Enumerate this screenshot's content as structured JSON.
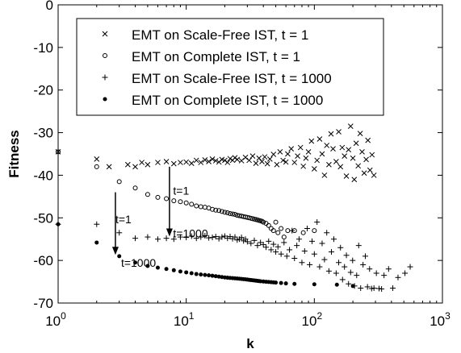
{
  "chart_data": {
    "type": "scatter",
    "xlabel": "k",
    "ylabel": "Fitness",
    "xscale": "log",
    "xlim": [
      1,
      1000
    ],
    "ylim": [
      -70,
      0
    ],
    "grid": false,
    "legend_position": "top-left",
    "x_ticks": [
      {
        "value": 1,
        "base": "10",
        "exp": "0"
      },
      {
        "value": 10,
        "base": "10",
        "exp": "1"
      },
      {
        "value": 100,
        "base": "10",
        "exp": "2"
      },
      {
        "value": 1000,
        "base": "10",
        "exp": "3"
      }
    ],
    "y_ticks": [
      {
        "value": 0,
        "label": "0"
      },
      {
        "value": -10,
        "label": "-10"
      },
      {
        "value": -20,
        "label": "-20"
      },
      {
        "value": -30,
        "label": "-30"
      },
      {
        "value": -40,
        "label": "-40"
      },
      {
        "value": -50,
        "label": "-50"
      },
      {
        "value": -60,
        "label": "-60"
      },
      {
        "value": -70,
        "label": "-70"
      }
    ],
    "series": [
      {
        "name": "EMT on Scale-Free IST, t = 1",
        "marker": "x",
        "points": [
          [
            1,
            -34.5
          ],
          [
            2,
            -36.2
          ],
          [
            2.5,
            -38
          ],
          [
            3.5,
            -37.5
          ],
          [
            4,
            -38
          ],
          [
            4.5,
            -37
          ],
          [
            5,
            -37.5
          ],
          [
            6,
            -37
          ],
          [
            7,
            -36.8
          ],
          [
            8,
            -37.3
          ],
          [
            9,
            -37
          ],
          [
            10,
            -36.9
          ],
          [
            11,
            -37.2
          ],
          [
            12,
            -36.5
          ],
          [
            13,
            -37
          ],
          [
            14,
            -36.4
          ],
          [
            15,
            -36.8
          ],
          [
            16,
            -36.2
          ],
          [
            17,
            -36.6
          ],
          [
            18,
            -36.9
          ],
          [
            19,
            -36.3
          ],
          [
            20,
            -36.5
          ],
          [
            21,
            -37
          ],
          [
            22,
            -36.1
          ],
          [
            23,
            -36.5
          ],
          [
            24,
            -35.9
          ],
          [
            25,
            -36.3
          ],
          [
            27,
            -36.6
          ],
          [
            29,
            -35.8
          ],
          [
            31,
            -36.5
          ],
          [
            33,
            -35.5
          ],
          [
            35,
            -37.2
          ],
          [
            37,
            -36
          ],
          [
            39,
            -36.8
          ],
          [
            41,
            -35.7
          ],
          [
            43,
            -37.3
          ],
          [
            45,
            -36.2
          ],
          [
            48,
            -35.1
          ],
          [
            51,
            -37.5
          ],
          [
            54,
            -34.5
          ],
          [
            57,
            -36.5
          ],
          [
            60,
            -36.9
          ],
          [
            62,
            -35
          ],
          [
            66,
            -33.8
          ],
          [
            70,
            -37
          ],
          [
            74,
            -35.5
          ],
          [
            78,
            -33.5
          ],
          [
            82,
            -37.9
          ],
          [
            86,
            -36
          ],
          [
            90,
            -34.5
          ],
          [
            95,
            -32
          ],
          [
            100,
            -38.5
          ],
          [
            105,
            -36.5
          ],
          [
            110,
            -31.5
          ],
          [
            115,
            -35
          ],
          [
            120,
            -40
          ],
          [
            125,
            -33
          ],
          [
            130,
            -37.5
          ],
          [
            135,
            -30.3
          ],
          [
            140,
            -33.8
          ],
          [
            148,
            -36.8
          ],
          [
            155,
            -29.8
          ],
          [
            160,
            -38
          ],
          [
            165,
            -33.5
          ],
          [
            172,
            -35.5
          ],
          [
            178,
            -40.2
          ],
          [
            185,
            -34
          ],
          [
            192,
            -28.5
          ],
          [
            200,
            -36
          ],
          [
            205,
            -41
          ],
          [
            212,
            -32.5
          ],
          [
            220,
            -37.8
          ],
          [
            228,
            -30.2
          ],
          [
            236,
            -34.5
          ],
          [
            245,
            -39.5
          ],
          [
            254,
            -36.3
          ],
          [
            262,
            -31.8
          ],
          [
            272,
            -38.8
          ],
          [
            282,
            -35.2
          ],
          [
            292,
            -40
          ]
        ]
      },
      {
        "name": "EMT on Complete IST, t = 1",
        "marker": "o",
        "points": [
          [
            1,
            -34.5
          ],
          [
            2,
            -38
          ],
          [
            3,
            -41.5
          ],
          [
            4,
            -43
          ],
          [
            5,
            -44.5
          ],
          [
            6,
            -45.2
          ],
          [
            7,
            -45.5
          ],
          [
            8,
            -46
          ],
          [
            9,
            -46.2
          ],
          [
            10,
            -46.5
          ],
          [
            11,
            -46.8
          ],
          [
            12,
            -47.2
          ],
          [
            13,
            -47.4
          ],
          [
            14,
            -47.5
          ],
          [
            15,
            -47.7
          ],
          [
            16,
            -48
          ],
          [
            17,
            -48.2
          ],
          [
            18,
            -48.3
          ],
          [
            19,
            -48.5
          ],
          [
            20,
            -48.7
          ],
          [
            21,
            -48.8
          ],
          [
            22,
            -49
          ],
          [
            23,
            -49.1
          ],
          [
            24,
            -49.2
          ],
          [
            25,
            -49.4
          ],
          [
            26,
            -49.5
          ],
          [
            27,
            -49.6
          ],
          [
            28,
            -49.7
          ],
          [
            29,
            -49.8
          ],
          [
            30,
            -49.9
          ],
          [
            31,
            -50
          ],
          [
            32,
            -50.1
          ],
          [
            33,
            -50.2
          ],
          [
            34,
            -50.3
          ],
          [
            35,
            -50.4
          ],
          [
            36,
            -50.5
          ],
          [
            37,
            -50.6
          ],
          [
            38,
            -50.7
          ],
          [
            39,
            -50.8
          ],
          [
            40,
            -51
          ],
          [
            42,
            -51.3
          ],
          [
            44,
            -51.8
          ],
          [
            46,
            -52.5
          ],
          [
            48,
            -53
          ],
          [
            50,
            -51
          ],
          [
            52,
            -53.5
          ],
          [
            55,
            -52.5
          ],
          [
            58,
            -54.5
          ],
          [
            62,
            -53
          ],
          [
            70,
            -53
          ],
          [
            82,
            -53.5
          ],
          [
            100,
            -53
          ]
        ]
      },
      {
        "name": "EMT on Scale-Free IST, t = 1000",
        "marker": "+",
        "points": [
          [
            1,
            -51.5
          ],
          [
            2,
            -51.5
          ],
          [
            3,
            -53.5
          ],
          [
            4,
            -54.8
          ],
          [
            5,
            -54.5
          ],
          [
            6,
            -55
          ],
          [
            7,
            -54.8
          ],
          [
            8,
            -55
          ],
          [
            9,
            -54.5
          ],
          [
            10,
            -54.6
          ],
          [
            11,
            -54.3
          ],
          [
            12,
            -54.8
          ],
          [
            13,
            -54.5
          ],
          [
            14,
            -54.2
          ],
          [
            15,
            -54.7
          ],
          [
            16,
            -54.6
          ],
          [
            17,
            -54.4
          ],
          [
            18,
            -54.9
          ],
          [
            19,
            -54.5
          ],
          [
            20,
            -54.3
          ],
          [
            21,
            -54.8
          ],
          [
            22,
            -54.4
          ],
          [
            23,
            -54.9
          ],
          [
            24,
            -54.5
          ],
          [
            25,
            -55.2
          ],
          [
            26,
            -55
          ],
          [
            27,
            -54.6
          ],
          [
            28,
            -55.4
          ],
          [
            29,
            -55
          ],
          [
            30,
            -55.6
          ],
          [
            32,
            -56
          ],
          [
            34,
            -55.3
          ],
          [
            36,
            -56.5
          ],
          [
            38,
            -55.8
          ],
          [
            40,
            -56.3
          ],
          [
            42,
            -56.9
          ],
          [
            44,
            -55.5
          ],
          [
            46,
            -57.5
          ],
          [
            48,
            -56.2
          ],
          [
            50,
            -58
          ],
          [
            52,
            -56.8
          ],
          [
            55,
            -58.5
          ],
          [
            58,
            -55.8
          ],
          [
            61,
            -59
          ],
          [
            64,
            -57.5
          ],
          [
            67,
            -53
          ],
          [
            70,
            -59.5
          ],
          [
            73,
            -56.5
          ],
          [
            76,
            -55
          ],
          [
            80,
            -60.5
          ],
          [
            84,
            -57.8
          ],
          [
            88,
            -52.5
          ],
          [
            92,
            -61
          ],
          [
            96,
            -55.5
          ],
          [
            100,
            -58.5
          ],
          [
            105,
            -51
          ],
          [
            110,
            -61.5
          ],
          [
            115,
            -56
          ],
          [
            120,
            -59.8
          ],
          [
            125,
            -53.5
          ],
          [
            130,
            -62.5
          ],
          [
            136,
            -58
          ],
          [
            142,
            -55
          ],
          [
            148,
            -63
          ],
          [
            155,
            -60.5
          ],
          [
            160,
            -57
          ],
          [
            166,
            -64.5
          ],
          [
            172,
            -61.5
          ],
          [
            178,
            -58.8
          ],
          [
            185,
            -65.5
          ],
          [
            192,
            -62.8
          ],
          [
            199,
            -60
          ],
          [
            206,
            -66
          ],
          [
            214,
            -63.5
          ],
          [
            222,
            -56.5
          ],
          [
            230,
            -66.5
          ],
          [
            240,
            -61
          ],
          [
            250,
            -59
          ],
          [
            260,
            -66.2
          ],
          [
            270,
            -62
          ],
          [
            280,
            -66.6
          ],
          [
            292,
            -66.5
          ],
          [
            305,
            -63
          ],
          [
            320,
            -66.6
          ],
          [
            335,
            -66.7
          ],
          [
            350,
            -63.5
          ],
          [
            380,
            -62
          ],
          [
            410,
            -66.5
          ],
          [
            450,
            -64
          ],
          [
            510,
            -63
          ],
          [
            560,
            -61.5
          ]
        ]
      },
      {
        "name": "EMT on Complete IST, t = 1000",
        "marker": "dot",
        "points": [
          [
            1,
            -51.5
          ],
          [
            2,
            -55.8
          ],
          [
            3,
            -59
          ],
          [
            4,
            -60.5
          ],
          [
            5,
            -61.3
          ],
          [
            6,
            -61.7
          ],
          [
            7,
            -62
          ],
          [
            8,
            -62.3
          ],
          [
            9,
            -62.6
          ],
          [
            10,
            -62.8
          ],
          [
            11,
            -63
          ],
          [
            12,
            -63.2
          ],
          [
            13,
            -63.3
          ],
          [
            14,
            -63.4
          ],
          [
            15,
            -63.5
          ],
          [
            16,
            -63.6
          ],
          [
            17,
            -63.7
          ],
          [
            18,
            -63.8
          ],
          [
            19,
            -63.9
          ],
          [
            20,
            -64
          ],
          [
            21,
            -64.05
          ],
          [
            22,
            -64.1
          ],
          [
            23,
            -64.15
          ],
          [
            24,
            -64.2
          ],
          [
            25,
            -64.25
          ],
          [
            26,
            -64.3
          ],
          [
            27,
            -64.35
          ],
          [
            28,
            -64.4
          ],
          [
            29,
            -64.45
          ],
          [
            30,
            -64.5
          ],
          [
            31,
            -64.55
          ],
          [
            32,
            -64.6
          ],
          [
            33,
            -64.65
          ],
          [
            34,
            -64.7
          ],
          [
            35,
            -64.75
          ],
          [
            36,
            -64.8
          ],
          [
            37,
            -64.85
          ],
          [
            38,
            -64.9
          ],
          [
            40,
            -64.95
          ],
          [
            42,
            -65
          ],
          [
            44,
            -65.05
          ],
          [
            46,
            -65.1
          ],
          [
            48,
            -65.15
          ],
          [
            50,
            -65.2
          ],
          [
            55,
            -65.3
          ],
          [
            60,
            -65.4
          ],
          [
            70,
            -65.5
          ],
          [
            100,
            -65.6
          ],
          [
            150,
            -65.7
          ],
          [
            200,
            -66
          ]
        ]
      }
    ],
    "annotations": [
      {
        "text": "t=1",
        "x": 2.8,
        "y": -50.3,
        "arrow_from": [
          2.8,
          -44
        ],
        "arrow_to": [
          2.8,
          -58.5
        ]
      },
      {
        "text": "t=1000",
        "x": 3.1,
        "y": -60.5,
        "arrow_from": null,
        "arrow_to": null
      },
      {
        "text": "t=1",
        "x": 7.9,
        "y": -43.6,
        "arrow_from": [
          7.4,
          -38
        ],
        "arrow_to": [
          7.4,
          -54.2
        ]
      },
      {
        "text": "t=1000",
        "x": 7.9,
        "y": -53.6,
        "arrow_from": null,
        "arrow_to": null
      }
    ]
  }
}
